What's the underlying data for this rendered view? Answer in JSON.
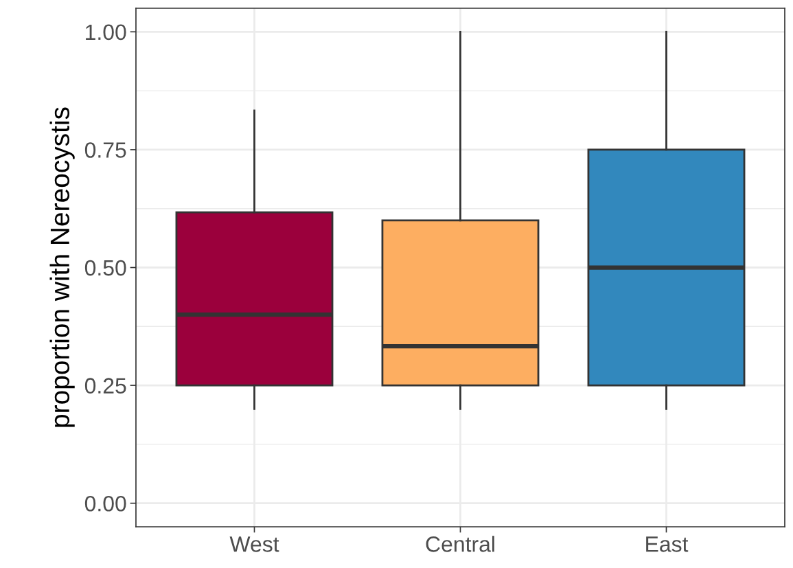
{
  "chart_data": {
    "type": "box",
    "ylabel": "proportion with Nereocystis",
    "categories": [
      "West",
      "Central",
      "East"
    ],
    "boxes": [
      {
        "low": 0.2,
        "q1": 0.25,
        "median": 0.4,
        "q3": 0.617,
        "high": 0.833
      },
      {
        "low": 0.2,
        "q1": 0.25,
        "median": 0.333,
        "q3": 0.6,
        "high": 1.0
      },
      {
        "low": 0.2,
        "q1": 0.25,
        "median": 0.5,
        "q3": 0.75,
        "high": 1.0
      }
    ],
    "colors": [
      "#9b003c",
      "#fdae61",
      "#3288bd"
    ],
    "ylim": [
      -0.05,
      1.05
    ],
    "yticks": [
      {
        "value": 0,
        "label": "0.00"
      },
      {
        "value": 0.25,
        "label": "0.25"
      },
      {
        "value": 0.5,
        "label": "0.50"
      },
      {
        "value": 0.75,
        "label": "0.75"
      },
      {
        "value": 1,
        "label": "1.00"
      }
    ],
    "grid": true,
    "legend": false
  }
}
